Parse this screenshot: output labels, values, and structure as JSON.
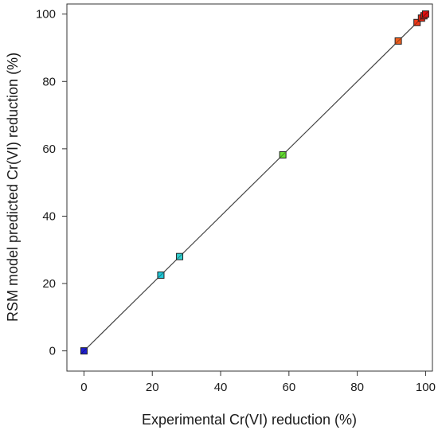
{
  "chart_data": {
    "type": "scatter",
    "title": "",
    "xlabel": "Experimental Cr(VI) reduction (%)",
    "ylabel": "RSM model predicted Cr(VI) reduction (%)",
    "xlim": [
      -5,
      102
    ],
    "ylim": [
      -6,
      103
    ],
    "xticks": [
      0,
      20,
      40,
      60,
      80,
      100
    ],
    "yticks": [
      0,
      20,
      40,
      60,
      80,
      100
    ],
    "grid": false,
    "reference_line": {
      "from": [
        0,
        0
      ],
      "to": [
        100,
        100
      ],
      "color": "#444444"
    },
    "points": [
      {
        "x": 0.0,
        "y": 0.0,
        "color": "#1f1fd0"
      },
      {
        "x": 22.5,
        "y": 22.5,
        "color": "#20c8d8"
      },
      {
        "x": 28.0,
        "y": 28.0,
        "color": "#30d0d0"
      },
      {
        "x": 58.2,
        "y": 58.2,
        "color": "#66dd33"
      },
      {
        "x": 92.0,
        "y": 92.0,
        "color": "#f06020"
      },
      {
        "x": 97.5,
        "y": 97.5,
        "color": "#ee3a1a"
      },
      {
        "x": 98.8,
        "y": 98.8,
        "color": "#e62a14"
      },
      {
        "x": 99.5,
        "y": 99.5,
        "color": "#e01e10"
      },
      {
        "x": 100.0,
        "y": 100.0,
        "color": "#dd1010"
      }
    ]
  }
}
